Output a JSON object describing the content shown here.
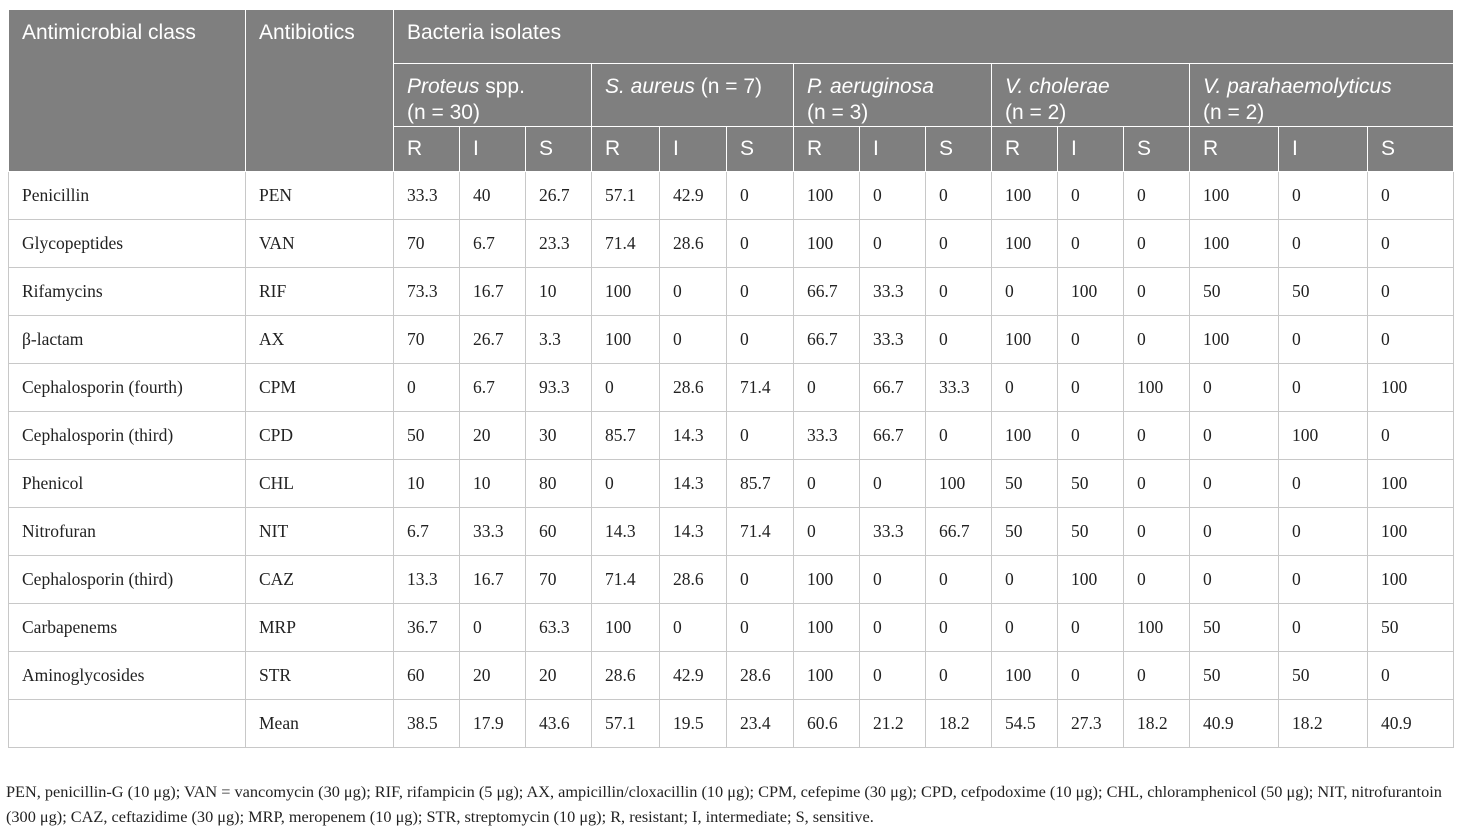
{
  "header": {
    "col_class": "Antimicrobial class",
    "col_antibiotic": "Antibiotics",
    "col_bacteria": "Bacteria isolates",
    "species": [
      {
        "name": "Proteus",
        "suffix": " spp.",
        "count": "(n = 30)"
      },
      {
        "name": "S. aureus",
        "suffix": " (n = 7)",
        "count": ""
      },
      {
        "name": "P. aeruginosa",
        "suffix": "",
        "count": "(n = 3)"
      },
      {
        "name": "V. cholerae",
        "suffix": "",
        "count": "(n = 2)"
      },
      {
        "name": "V. parahaemolyticus",
        "suffix": "",
        "count": "(n = 2)"
      }
    ],
    "sub_labels": [
      "R",
      "I",
      "S"
    ]
  },
  "rows": [
    {
      "class": "Penicillin",
      "abx": "PEN",
      "v": [
        "33.3",
        "40",
        "26.7",
        "57.1",
        "42.9",
        "0",
        "100",
        "0",
        "0",
        "100",
        "0",
        "0",
        "100",
        "0",
        "0"
      ]
    },
    {
      "class": "Glycopeptides",
      "abx": "VAN",
      "v": [
        "70",
        "6.7",
        "23.3",
        "71.4",
        "28.6",
        "0",
        "100",
        "0",
        "0",
        "100",
        "0",
        "0",
        "100",
        "0",
        "0"
      ]
    },
    {
      "class": "Rifamycins",
      "abx": "RIF",
      "v": [
        "73.3",
        "16.7",
        "10",
        "100",
        "0",
        "0",
        "66.7",
        "33.3",
        "0",
        "0",
        "100",
        "0",
        "50",
        "50",
        "0"
      ]
    },
    {
      "class": "β-lactam",
      "abx": "AX",
      "v": [
        "70",
        "26.7",
        "3.3",
        "100",
        "0",
        "0",
        "66.7",
        "33.3",
        "0",
        "100",
        "0",
        "0",
        "100",
        "0",
        "0"
      ]
    },
    {
      "class": "Cephalosporin (fourth)",
      "abx": "CPM",
      "v": [
        "0",
        "6.7",
        "93.3",
        "0",
        "28.6",
        "71.4",
        "0",
        "66.7",
        "33.3",
        "0",
        "0",
        "100",
        "0",
        "0",
        "100"
      ]
    },
    {
      "class": "Cephalosporin (third)",
      "abx": "CPD",
      "v": [
        "50",
        "20",
        "30",
        "85.7",
        "14.3",
        "0",
        "33.3",
        "66.7",
        "0",
        "100",
        "0",
        "0",
        "0",
        "100",
        "0"
      ]
    },
    {
      "class": "Phenicol",
      "abx": "CHL",
      "v": [
        "10",
        "10",
        "80",
        "0",
        "14.3",
        "85.7",
        "0",
        "0",
        "100",
        "50",
        "50",
        "0",
        "0",
        "0",
        "100"
      ]
    },
    {
      "class": "Nitrofuran",
      "abx": "NIT",
      "v": [
        "6.7",
        "33.3",
        "60",
        "14.3",
        "14.3",
        "71.4",
        "0",
        "33.3",
        "66.7",
        "50",
        "50",
        "0",
        "0",
        "0",
        "100"
      ]
    },
    {
      "class": "Cephalosporin (third)",
      "abx": "CAZ",
      "v": [
        "13.3",
        "16.7",
        "70",
        "71.4",
        "28.6",
        "0",
        "100",
        "0",
        "0",
        "0",
        "100",
        "0",
        "0",
        "0",
        "100"
      ]
    },
    {
      "class": "Carbapenems",
      "abx": "MRP",
      "v": [
        "36.7",
        "0",
        "63.3",
        "100",
        "0",
        "0",
        "100",
        "0",
        "0",
        "0",
        "0",
        "100",
        "50",
        "0",
        "50"
      ]
    },
    {
      "class": "Aminoglycosides",
      "abx": "STR",
      "v": [
        "60",
        "20",
        "20",
        "28.6",
        "42.9",
        "28.6",
        "100",
        "0",
        "0",
        "100",
        "0",
        "0",
        "50",
        "50",
        "0"
      ]
    },
    {
      "class": "",
      "abx": "Mean",
      "v": [
        "38.5",
        "17.9",
        "43.6",
        "57.1",
        "19.5",
        "23.4",
        "60.6",
        "21.2",
        "18.2",
        "54.5",
        "27.3",
        "18.2",
        "40.9",
        "18.2",
        "40.9"
      ]
    }
  ],
  "footnote": "PEN, penicillin-G (10 μg); VAN = vancomycin (30 μg); RIF, rifampicin (5 μg); AX, ampicillin/cloxacillin (10 μg); CPM, cefepime (30 μg); CPD, cefpodoxime (10 μg); CHL, chloramphenicol (50 μg); NIT, nitrofurantoin (300 μg); CAZ, ceftazidime (30 μg); MRP, meropenem (10 μg); STR, streptomycin (10 μg); R, resistant; I, intermediate; S, sensitive."
}
